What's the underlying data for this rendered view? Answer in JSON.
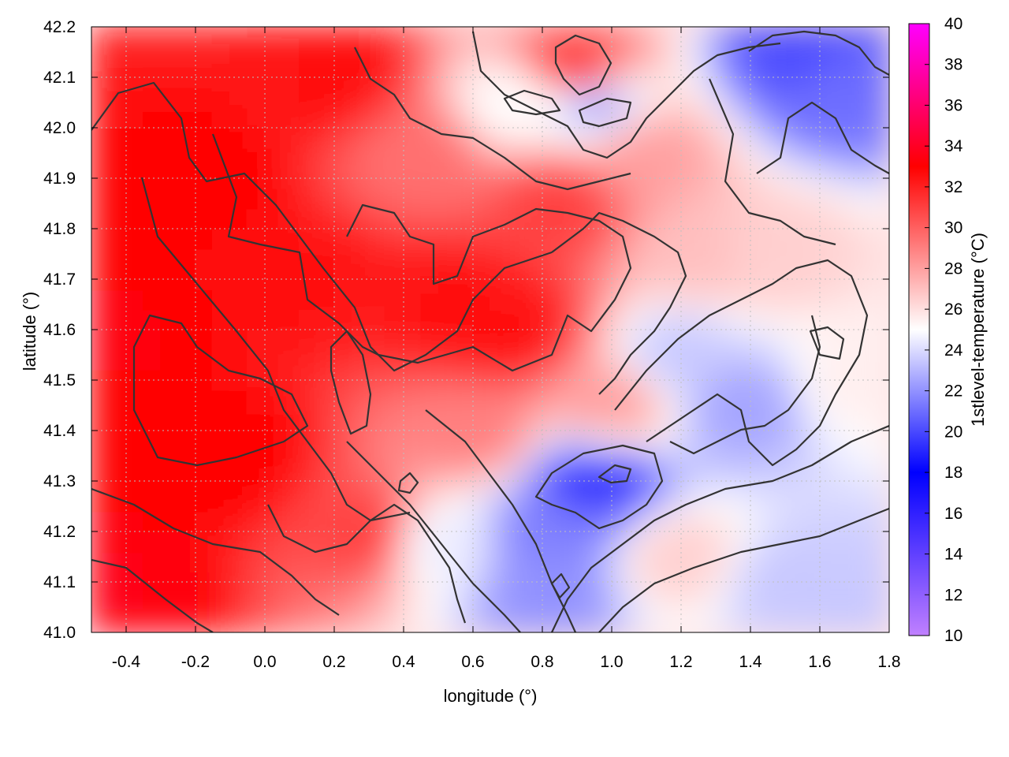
{
  "chart_data": {
    "type": "heatmap",
    "title": "",
    "xlabel": "longitude (°)",
    "ylabel": "latitude (°)",
    "colorbar_label": "1stlevel-temperature (°C)",
    "xlim": [
      -0.5,
      1.8
    ],
    "ylim": [
      41.0,
      42.2
    ],
    "xticks": [
      "-0.4",
      "-0.2",
      "0.0",
      "0.2",
      "0.4",
      "0.6",
      "0.8",
      "1.0",
      "1.2",
      "1.4",
      "1.6",
      "1.8"
    ],
    "xtick_values": [
      -0.4,
      -0.2,
      0.0,
      0.2,
      0.4,
      0.6,
      0.8,
      1.0,
      1.2,
      1.4,
      1.6,
      1.8
    ],
    "yticks": [
      "41.0",
      "41.1",
      "41.2",
      "41.3",
      "41.4",
      "41.5",
      "41.6",
      "41.7",
      "41.8",
      "41.9",
      "42.0",
      "42.1",
      "42.2"
    ],
    "ytick_values": [
      41.0,
      41.1,
      41.2,
      41.3,
      41.4,
      41.5,
      41.6,
      41.7,
      41.8,
      41.9,
      42.0,
      42.1,
      42.2
    ],
    "colorbar_ticks": [
      "10",
      "12",
      "14",
      "16",
      "18",
      "20",
      "22",
      "24",
      "26",
      "28",
      "30",
      "32",
      "34",
      "36",
      "38",
      "40"
    ],
    "colorbar_range": [
      10,
      40
    ],
    "colormap": [
      {
        "value": 10,
        "color": "#c080ff"
      },
      {
        "value": 18,
        "color": "#0000ff"
      },
      {
        "value": 25,
        "color": "#ffffff"
      },
      {
        "value": 33,
        "color": "#ff0000"
      },
      {
        "value": 40,
        "color": "#ff00ff"
      }
    ],
    "grid": true,
    "field_samples": [
      {
        "lon": -0.45,
        "lat": 41.1,
        "value": 33.5
      },
      {
        "lon": -0.4,
        "lat": 41.6,
        "value": 33.2
      },
      {
        "lon": -0.2,
        "lat": 41.9,
        "value": 33
      },
      {
        "lon": -0.1,
        "lat": 41.35,
        "value": 33
      },
      {
        "lon": 0.1,
        "lat": 41.7,
        "value": 32.5
      },
      {
        "lon": 0.2,
        "lat": 42.1,
        "value": 32.5
      },
      {
        "lon": 0.3,
        "lat": 41.2,
        "value": 31
      },
      {
        "lon": 0.55,
        "lat": 41.65,
        "value": 32.5
      },
      {
        "lon": 0.45,
        "lat": 41.95,
        "value": 29.5
      },
      {
        "lon": 0.7,
        "lat": 41.6,
        "value": 32.5
      },
      {
        "lon": 0.85,
        "lat": 41.85,
        "value": 31
      },
      {
        "lon": 0.9,
        "lat": 42.12,
        "value": 31
      },
      {
        "lon": 0.72,
        "lat": 42.05,
        "value": 25
      },
      {
        "lon": 0.95,
        "lat": 42.05,
        "value": 23
      },
      {
        "lon": 1.1,
        "lat": 41.95,
        "value": 28
      },
      {
        "lon": 1.0,
        "lat": 41.45,
        "value": 28
      },
      {
        "lon": 1.2,
        "lat": 41.55,
        "value": 23.5
      },
      {
        "lon": 1.38,
        "lat": 41.45,
        "value": 22.5
      },
      {
        "lon": 1.25,
        "lat": 41.75,
        "value": 27
      },
      {
        "lon": 1.45,
        "lat": 41.75,
        "value": 26.5
      },
      {
        "lon": 1.55,
        "lat": 42.15,
        "value": 20
      },
      {
        "lon": 1.65,
        "lat": 42.08,
        "value": 21
      },
      {
        "lon": 1.7,
        "lat": 41.5,
        "value": 25.5
      },
      {
        "lon": 0.95,
        "lat": 41.3,
        "value": 19.5
      },
      {
        "lon": 0.82,
        "lat": 41.2,
        "value": 21.5
      },
      {
        "lon": 0.82,
        "lat": 41.08,
        "value": 22
      },
      {
        "lon": 1.5,
        "lat": 41.1,
        "value": 23.5
      },
      {
        "lon": 1.7,
        "lat": 41.05,
        "value": 23.5
      },
      {
        "lon": 1.2,
        "lat": 41.15,
        "value": 26.5
      },
      {
        "lon": 0.5,
        "lat": 41.18,
        "value": 24.5
      },
      {
        "lon": 0.6,
        "lat": 41.4,
        "value": 29
      }
    ]
  }
}
